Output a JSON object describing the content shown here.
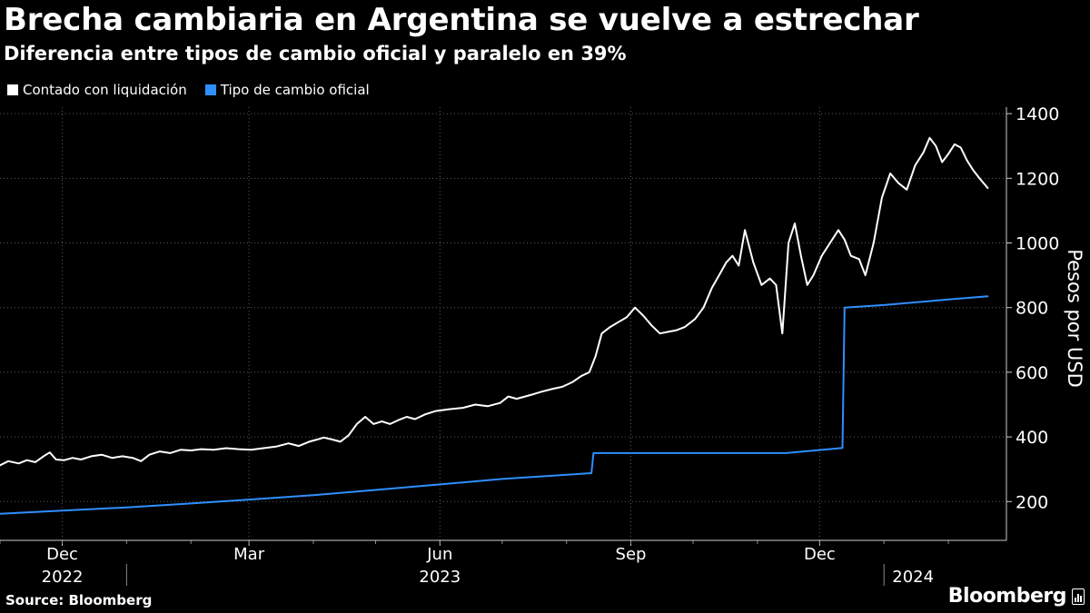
{
  "header": {
    "title": "Brecha cambiaria en Argentina se vuelve a estrechar",
    "subtitle": "Diferencia entre tipos de cambio oficial y paralelo en 39%"
  },
  "legend": [
    {
      "label": "Contado con liquidación",
      "color": "#ffffff"
    },
    {
      "label": "Tipo de cambio oficial",
      "color": "#2f8fff"
    }
  ],
  "footer": {
    "source": "Source: Bloomberg",
    "brand": "Bloomberg"
  },
  "chart_data": {
    "type": "line",
    "ylabel": "Pesos por USD",
    "ylim": [
      80,
      1420
    ],
    "yticks": [
      200,
      400,
      600,
      800,
      1000,
      1200,
      1400
    ],
    "x_range": [
      "2022-11-01",
      "2024-02-29"
    ],
    "grid": true,
    "legend_position": "top-left",
    "month_ticks": [
      {
        "label": "Dec",
        "date": "2022-12-01"
      },
      {
        "label": "Mar",
        "date": "2023-03-01"
      },
      {
        "label": "Jun",
        "date": "2023-06-01"
      },
      {
        "label": "Sep",
        "date": "2023-09-01"
      },
      {
        "label": "Dec",
        "date": "2023-12-01"
      }
    ],
    "year_labels": [
      {
        "label": "2022",
        "date": "2022-12-01"
      },
      {
        "label": "2023",
        "date": "2023-06-01"
      },
      {
        "label": "2024",
        "date": "2024-01-15"
      }
    ],
    "series": [
      {
        "name": "Contado con liquidación",
        "color": "#ffffff",
        "points": [
          [
            "2022-11-01",
            312
          ],
          [
            "2022-11-05",
            325
          ],
          [
            "2022-11-10",
            318
          ],
          [
            "2022-11-14",
            328
          ],
          [
            "2022-11-18",
            322
          ],
          [
            "2022-11-22",
            340
          ],
          [
            "2022-11-25",
            352
          ],
          [
            "2022-11-28",
            330
          ],
          [
            "2022-12-02",
            328
          ],
          [
            "2022-12-06",
            335
          ],
          [
            "2022-12-10",
            330
          ],
          [
            "2022-12-15",
            340
          ],
          [
            "2022-12-20",
            345
          ],
          [
            "2022-12-25",
            335
          ],
          [
            "2022-12-30",
            340
          ],
          [
            "2023-01-04",
            335
          ],
          [
            "2023-01-08",
            325
          ],
          [
            "2023-01-12",
            345
          ],
          [
            "2023-01-17",
            355
          ],
          [
            "2023-01-22",
            350
          ],
          [
            "2023-01-27",
            360
          ],
          [
            "2023-02-01",
            358
          ],
          [
            "2023-02-06",
            362
          ],
          [
            "2023-02-12",
            360
          ],
          [
            "2023-02-18",
            365
          ],
          [
            "2023-02-24",
            362
          ],
          [
            "2023-03-02",
            360
          ],
          [
            "2023-03-08",
            365
          ],
          [
            "2023-03-14",
            370
          ],
          [
            "2023-03-20",
            380
          ],
          [
            "2023-03-25",
            372
          ],
          [
            "2023-03-30",
            385
          ],
          [
            "2023-04-03",
            392
          ],
          [
            "2023-04-06",
            398
          ],
          [
            "2023-04-10",
            392
          ],
          [
            "2023-04-14",
            385
          ],
          [
            "2023-04-18",
            405
          ],
          [
            "2023-04-22",
            440
          ],
          [
            "2023-04-26",
            462
          ],
          [
            "2023-04-30",
            440
          ],
          [
            "2023-05-04",
            448
          ],
          [
            "2023-05-08",
            440
          ],
          [
            "2023-05-12",
            452
          ],
          [
            "2023-05-16",
            462
          ],
          [
            "2023-05-20",
            455
          ],
          [
            "2023-05-25",
            470
          ],
          [
            "2023-05-30",
            480
          ],
          [
            "2023-06-05",
            485
          ],
          [
            "2023-06-12",
            490
          ],
          [
            "2023-06-18",
            500
          ],
          [
            "2023-06-24",
            495
          ],
          [
            "2023-06-30",
            505
          ],
          [
            "2023-07-04",
            525
          ],
          [
            "2023-07-08",
            518
          ],
          [
            "2023-07-12",
            525
          ],
          [
            "2023-07-16",
            532
          ],
          [
            "2023-07-20",
            540
          ],
          [
            "2023-07-25",
            548
          ],
          [
            "2023-07-30",
            555
          ],
          [
            "2023-08-04",
            570
          ],
          [
            "2023-08-08",
            588
          ],
          [
            "2023-08-12",
            600
          ],
          [
            "2023-08-15",
            650
          ],
          [
            "2023-08-18",
            720
          ],
          [
            "2023-08-22",
            740
          ],
          [
            "2023-08-26",
            755
          ],
          [
            "2023-08-30",
            770
          ],
          [
            "2023-09-03",
            800
          ],
          [
            "2023-09-07",
            775
          ],
          [
            "2023-09-11",
            745
          ],
          [
            "2023-09-15",
            720
          ],
          [
            "2023-09-19",
            725
          ],
          [
            "2023-09-23",
            730
          ],
          [
            "2023-09-27",
            740
          ],
          [
            "2023-10-02",
            765
          ],
          [
            "2023-10-06",
            800
          ],
          [
            "2023-10-10",
            860
          ],
          [
            "2023-10-14",
            905
          ],
          [
            "2023-10-17",
            940
          ],
          [
            "2023-10-20",
            960
          ],
          [
            "2023-10-23",
            930
          ],
          [
            "2023-10-26",
            1040
          ],
          [
            "2023-10-30",
            940
          ],
          [
            "2023-11-03",
            870
          ],
          [
            "2023-11-07",
            890
          ],
          [
            "2023-11-10",
            870
          ],
          [
            "2023-11-13",
            720
          ],
          [
            "2023-11-16",
            1000
          ],
          [
            "2023-11-19",
            1060
          ],
          [
            "2023-11-22",
            960
          ],
          [
            "2023-11-25",
            870
          ],
          [
            "2023-11-28",
            900
          ],
          [
            "2023-12-02",
            960
          ],
          [
            "2023-12-06",
            1000
          ],
          [
            "2023-12-10",
            1040
          ],
          [
            "2023-12-13",
            1010
          ],
          [
            "2023-12-16",
            960
          ],
          [
            "2023-12-20",
            950
          ],
          [
            "2023-12-23",
            900
          ],
          [
            "2023-12-27",
            1000
          ],
          [
            "2023-12-31",
            1140
          ],
          [
            "2024-01-04",
            1215
          ],
          [
            "2024-01-08",
            1185
          ],
          [
            "2024-01-12",
            1165
          ],
          [
            "2024-01-16",
            1240
          ],
          [
            "2024-01-20",
            1280
          ],
          [
            "2024-01-23",
            1325
          ],
          [
            "2024-01-26",
            1300
          ],
          [
            "2024-01-29",
            1250
          ],
          [
            "2024-02-01",
            1275
          ],
          [
            "2024-02-04",
            1305
          ],
          [
            "2024-02-07",
            1295
          ],
          [
            "2024-02-10",
            1255
          ],
          [
            "2024-02-13",
            1225
          ],
          [
            "2024-02-16",
            1200
          ],
          [
            "2024-02-20",
            1170
          ]
        ]
      },
      {
        "name": "Tipo de cambio oficial",
        "color": "#2f8fff",
        "points": [
          [
            "2022-11-01",
            162
          ],
          [
            "2022-12-01",
            172
          ],
          [
            "2023-01-01",
            182
          ],
          [
            "2023-02-01",
            194
          ],
          [
            "2023-03-01",
            206
          ],
          [
            "2023-04-01",
            220
          ],
          [
            "2023-05-01",
            236
          ],
          [
            "2023-06-01",
            253
          ],
          [
            "2023-07-01",
            270
          ],
          [
            "2023-08-13",
            288
          ],
          [
            "2023-08-14",
            350
          ],
          [
            "2023-11-15",
            350
          ],
          [
            "2023-12-12",
            366
          ],
          [
            "2023-12-13",
            800
          ],
          [
            "2024-01-01",
            808
          ],
          [
            "2024-02-01",
            825
          ],
          [
            "2024-02-20",
            835
          ]
        ]
      }
    ]
  }
}
